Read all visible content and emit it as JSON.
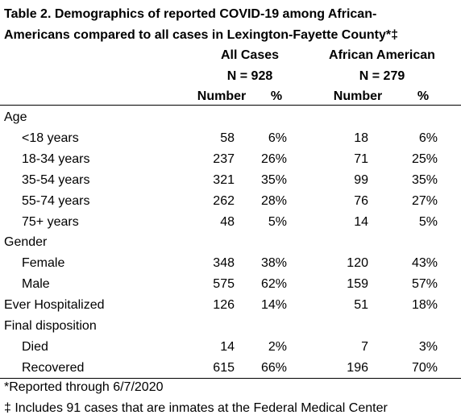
{
  "title_lines": [
    "Table 2. Demographics of reported COVID-19 among African-",
    "Americans compared to all cases in Lexington-Fayette County*‡"
  ],
  "column_groups": [
    {
      "label": "All Cases",
      "n": "N = 928"
    },
    {
      "label": "African American",
      "n": "N = 279"
    }
  ],
  "column_headers": [
    "Number",
    "%",
    "Number",
    "%"
  ],
  "rows": [
    {
      "label": "Age"
    },
    {
      "label": "<18 years",
      "cells": [
        "58",
        "6%",
        "18",
        "6%"
      ]
    },
    {
      "label": "18-34 years",
      "cells": [
        "237",
        "26%",
        "71",
        "25%"
      ]
    },
    {
      "label": "35-54 years",
      "cells": [
        "321",
        "35%",
        "99",
        "35%"
      ]
    },
    {
      "label": "55-74 years",
      "cells": [
        "262",
        "28%",
        "76",
        "27%"
      ]
    },
    {
      "label": "75+ years",
      "cells": [
        "48",
        "5%",
        "14",
        "5%"
      ]
    },
    {
      "label": "Gender"
    },
    {
      "label": "Female",
      "cells": [
        "348",
        "38%",
        "120",
        "43%"
      ]
    },
    {
      "label": "Male",
      "cells": [
        "575",
        "62%",
        "159",
        "57%"
      ]
    },
    {
      "label": "Ever Hospitalized",
      "cells": [
        "126",
        "14%",
        "51",
        "18%"
      ]
    },
    {
      "label": "Final disposition"
    },
    {
      "label": "Died",
      "cells": [
        "14",
        "2%",
        "7",
        "3%"
      ]
    },
    {
      "label": "Recovered",
      "cells": [
        "615",
        "66%",
        "196",
        "70%"
      ]
    }
  ],
  "footnotes": [
    "*Reported through 6/7/2020",
    "‡ Includes 91 cases that are inmates at the Federal Medical Center"
  ]
}
